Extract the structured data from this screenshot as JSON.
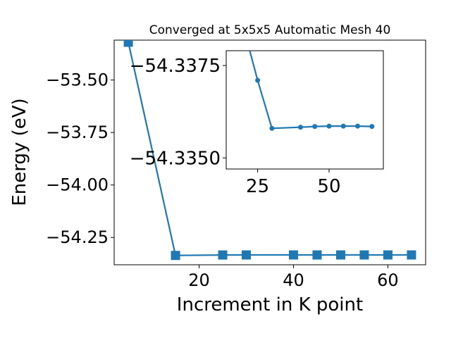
{
  "chart_data": [
    {
      "type": "line",
      "title": "Converged at 5x5x5 Automatic Mesh 40",
      "xlabel": "Increment in K point",
      "ylabel": "Energy (eV)",
      "xlim": [
        2,
        68
      ],
      "ylim": [
        -54.38,
        -53.31
      ],
      "x_ticks": [
        20,
        40,
        60
      ],
      "x_tick_labels": [
        "20",
        "40",
        "60"
      ],
      "y_ticks": [
        -53.5,
        -53.75,
        -54.0,
        -54.25
      ],
      "y_tick_labels": [
        "−53.50",
        "−53.75",
        "−54.00",
        "−54.25"
      ],
      "grid": false,
      "series": [
        {
          "marker": "square",
          "color": "#1f77b4",
          "x": [
            5,
            15,
            25,
            30,
            40,
            45,
            50,
            55,
            60,
            65
          ],
          "y": [
            -53.32,
            -54.3355,
            -54.3334,
            -54.3332,
            -54.3332,
            -54.3332,
            -54.3332,
            -54.3332,
            -54.3332,
            -54.3332
          ]
        }
      ]
    },
    {
      "type": "line",
      "title": "",
      "xlabel": "",
      "ylabel": "",
      "inset": true,
      "xlim": [
        14,
        69
      ],
      "ylim": [
        -54.3347,
        -54.3379
      ],
      "x_ticks": [
        25,
        50
      ],
      "x_tick_labels": [
        "25",
        "50"
      ],
      "y_ticks": [
        -54.3375,
        -54.335
      ],
      "y_tick_labels": [
        "−54.3375",
        "−54.3350"
      ],
      "grid": false,
      "series": [
        {
          "marker": "circle",
          "color": "#1f77b4",
          "x": [
            15,
            25,
            30,
            40,
            45,
            50,
            55,
            60,
            65
          ],
          "y": [
            -54.34,
            -54.3371,
            -54.3358,
            -54.33583,
            -54.33585,
            -54.33586,
            -54.33586,
            -54.33586,
            -54.33585
          ]
        }
      ]
    }
  ]
}
